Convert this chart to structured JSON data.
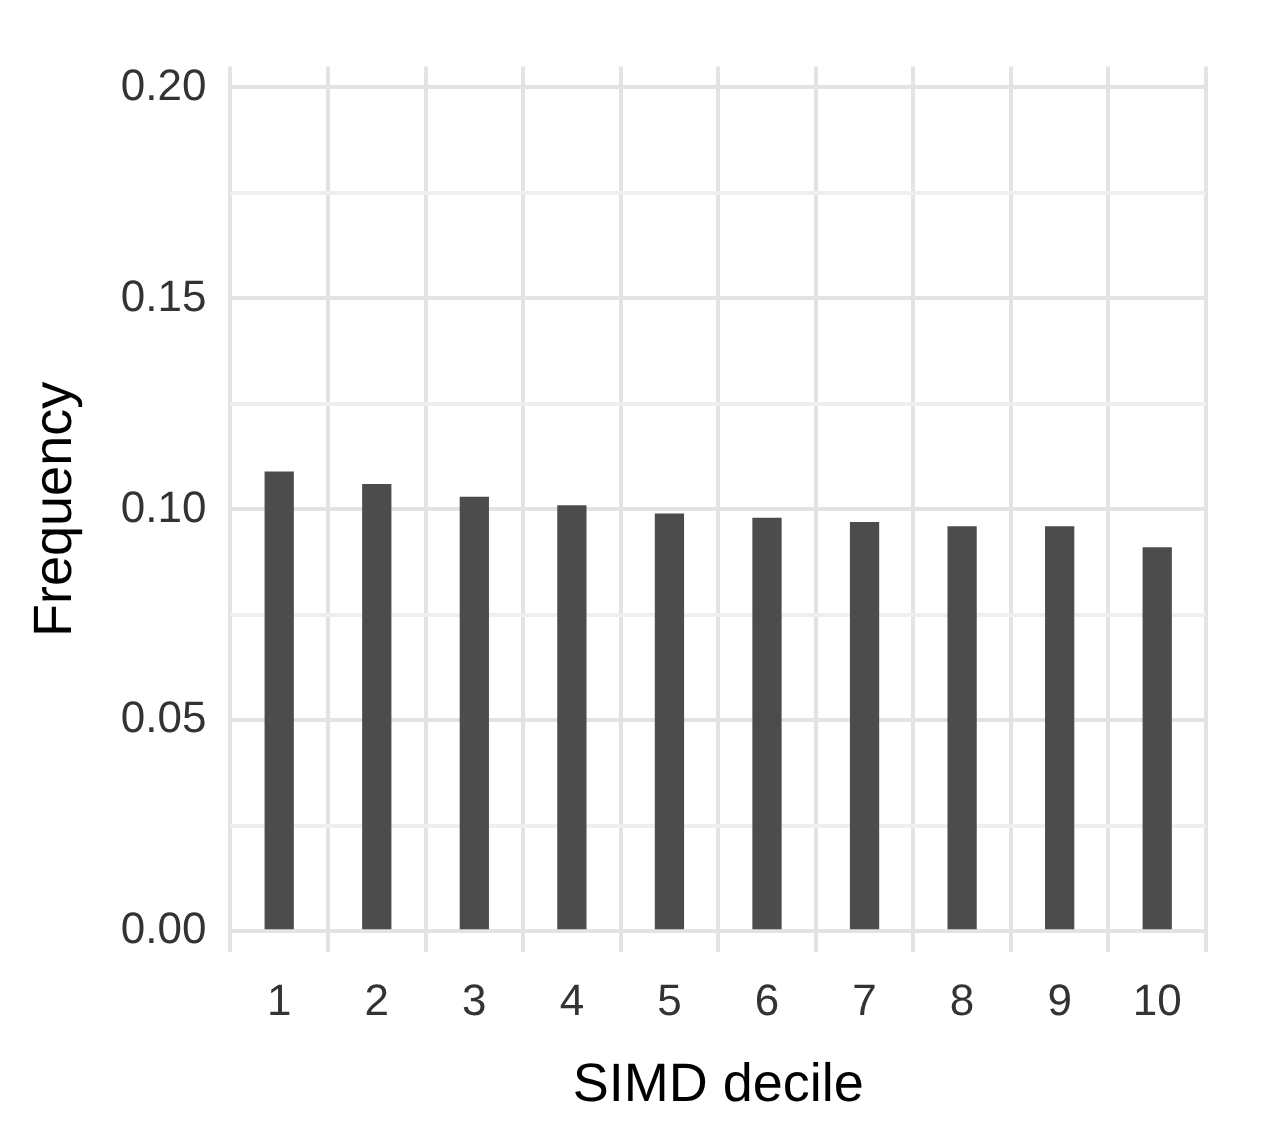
{
  "chart_data": {
    "type": "bar",
    "xlabel": "SIMD decile",
    "ylabel": "Frequency",
    "categories": [
      "1",
      "2",
      "3",
      "4",
      "5",
      "6",
      "7",
      "8",
      "9",
      "10"
    ],
    "values": [
      0.109,
      0.106,
      0.103,
      0.101,
      0.099,
      0.098,
      0.097,
      0.096,
      0.096,
      0.091
    ],
    "color": "#4b4c4b",
    "ylim": [
      -0.005,
      0.205
    ],
    "yticks": [
      {
        "value": 0,
        "label": "0.00"
      },
      {
        "value": 0.025,
        "label": null
      },
      {
        "value": 0.05,
        "label": "0.05"
      },
      {
        "value": 0.075,
        "label": null
      },
      {
        "value": 0.1,
        "label": "0.10"
      },
      {
        "value": 0.125,
        "label": null
      },
      {
        "value": 0.15,
        "label": "0.15"
      },
      {
        "value": 0.175,
        "label": null
      },
      {
        "value": 0.2,
        "label": "0.20"
      }
    ],
    "grid": true,
    "legend": false
  }
}
